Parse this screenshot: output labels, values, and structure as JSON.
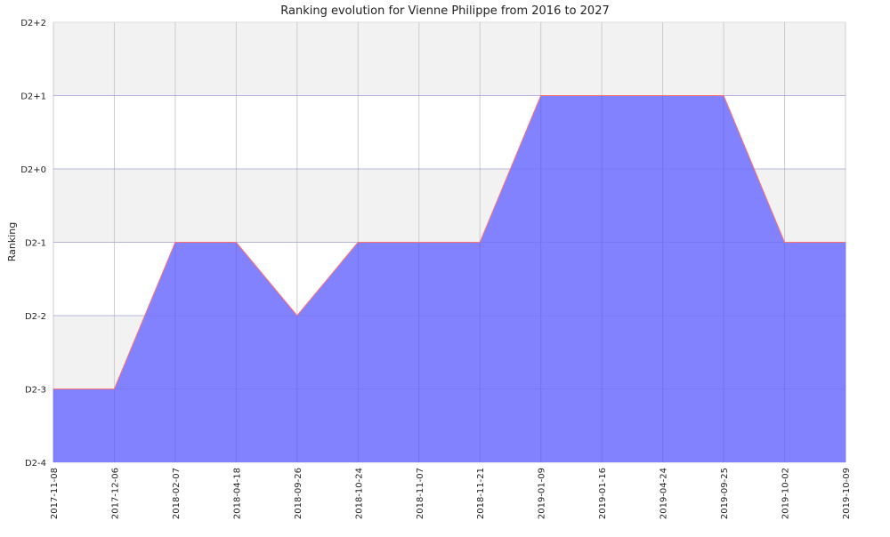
{
  "chart_data": {
    "type": "area",
    "title": "Ranking evolution for Vienne Philippe from 2016 to 2027",
    "xlabel": "",
    "ylabel": "Ranking",
    "x": [
      "2017-11-08",
      "2017-12-06",
      "2018-02-07",
      "2018-04-18",
      "2018-09-26",
      "2018-10-24",
      "2018-11-07",
      "2018-11-21",
      "2019-01-09",
      "2019-01-16",
      "2019-04-24",
      "2019-09-25",
      "2019-10-02",
      "2019-10-09"
    ],
    "y_tick_labels": [
      "D2-4",
      "D2-3",
      "D2-2",
      "D2-1",
      "D2+0",
      "D2+1",
      "D2+2"
    ],
    "series": [
      {
        "values": [
          "D2-3",
          "D2-3",
          "D2-1",
          "D2-1",
          "D2-2",
          "D2-1",
          "D2-1",
          "D2-1",
          "D2+1",
          "D2+1",
          "D2+1",
          "D2+1",
          "D2-1",
          "D2-1"
        ]
      }
    ],
    "grid": true,
    "colors": {
      "fill": "#8080ff",
      "line": "#ff7070",
      "band": "#f2f2f2",
      "grid": "#cccccc"
    }
  }
}
